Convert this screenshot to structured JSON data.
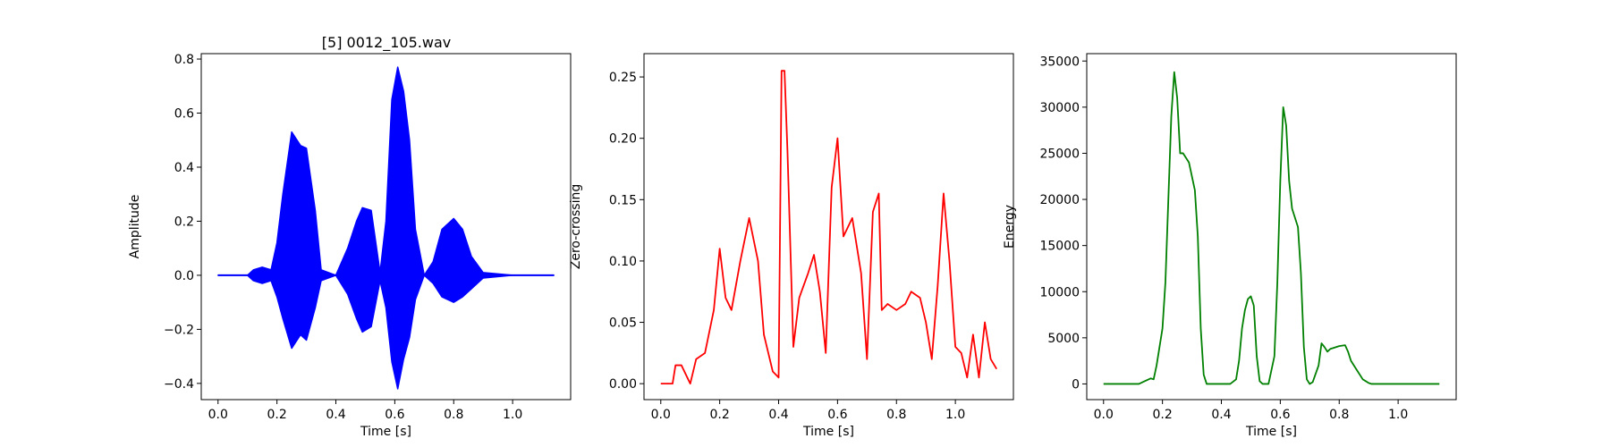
{
  "chart_data": [
    {
      "type": "line",
      "title": "[5] 0012_105.wav",
      "xlabel": "Time [s]",
      "ylabel": "Amplitude",
      "xlim": [
        -0.057,
        1.197
      ],
      "ylim": [
        -0.46,
        0.82
      ],
      "xticks": [
        0.0,
        0.2,
        0.4,
        0.6,
        0.8,
        1.0
      ],
      "xtick_labels": [
        "0.0",
        "0.2",
        "0.4",
        "0.6",
        "0.8",
        "1.0"
      ],
      "yticks": [
        -0.4,
        -0.2,
        0.0,
        0.2,
        0.4,
        0.6,
        0.8
      ],
      "ytick_labels": [
        "−0.4",
        "−0.2",
        "0.0",
        "0.2",
        "0.4",
        "0.6",
        "0.8"
      ],
      "grid": false,
      "style": "waveform",
      "series": [
        {
          "color": "#0000ff",
          "x": [
            0.0,
            0.1,
            0.12,
            0.15,
            0.18,
            0.2,
            0.22,
            0.25,
            0.28,
            0.3,
            0.33,
            0.35,
            0.4,
            0.44,
            0.47,
            0.49,
            0.52,
            0.55,
            0.57,
            0.59,
            0.61,
            0.63,
            0.65,
            0.67,
            0.7,
            0.73,
            0.76,
            0.8,
            0.83,
            0.86,
            0.9,
            1.0,
            1.14
          ],
          "upper": [
            0.0,
            0.0,
            0.02,
            0.03,
            0.02,
            0.12,
            0.3,
            0.53,
            0.48,
            0.47,
            0.24,
            0.02,
            0.0,
            0.1,
            0.2,
            0.25,
            0.24,
            0.01,
            0.2,
            0.65,
            0.77,
            0.68,
            0.5,
            0.17,
            0.0,
            0.05,
            0.17,
            0.21,
            0.17,
            0.07,
            0.01,
            0.0,
            0.0
          ],
          "lower": [
            0.0,
            0.0,
            -0.02,
            -0.03,
            -0.02,
            -0.08,
            -0.16,
            -0.27,
            -0.22,
            -0.24,
            -0.12,
            -0.02,
            0.0,
            -0.07,
            -0.16,
            -0.21,
            -0.19,
            -0.02,
            -0.12,
            -0.32,
            -0.42,
            -0.31,
            -0.23,
            -0.09,
            0.0,
            -0.03,
            -0.08,
            -0.1,
            -0.08,
            -0.05,
            -0.01,
            0.0,
            0.0
          ]
        }
      ]
    },
    {
      "type": "line",
      "title": "",
      "xlabel": "Time [s]",
      "ylabel": "Zero-crossing",
      "xlim": [
        -0.057,
        1.197
      ],
      "ylim": [
        -0.013,
        0.269
      ],
      "xticks": [
        0.0,
        0.2,
        0.4,
        0.6,
        0.8,
        1.0
      ],
      "xtick_labels": [
        "0.0",
        "0.2",
        "0.4",
        "0.6",
        "0.8",
        "1.0"
      ],
      "yticks": [
        0.0,
        0.05,
        0.1,
        0.15,
        0.2,
        0.25
      ],
      "ytick_labels": [
        "0.00",
        "0.05",
        "0.10",
        "0.15",
        "0.20",
        "0.25"
      ],
      "grid": false,
      "series": [
        {
          "color": "#ff0000",
          "x": [
            0.0,
            0.04,
            0.05,
            0.07,
            0.09,
            0.1,
            0.12,
            0.15,
            0.18,
            0.2,
            0.22,
            0.24,
            0.27,
            0.3,
            0.33,
            0.35,
            0.38,
            0.4,
            0.41,
            0.42,
            0.43,
            0.45,
            0.47,
            0.5,
            0.52,
            0.54,
            0.56,
            0.58,
            0.6,
            0.62,
            0.65,
            0.68,
            0.7,
            0.72,
            0.74,
            0.75,
            0.77,
            0.8,
            0.83,
            0.85,
            0.88,
            0.9,
            0.92,
            0.94,
            0.96,
            0.98,
            1.0,
            1.02,
            1.04,
            1.06,
            1.08,
            1.1,
            1.12,
            1.14
          ],
          "y": [
            0.0,
            0.0,
            0.015,
            0.015,
            0.005,
            0.0,
            0.02,
            0.025,
            0.06,
            0.11,
            0.07,
            0.06,
            0.1,
            0.135,
            0.1,
            0.04,
            0.01,
            0.005,
            0.255,
            0.255,
            0.19,
            0.03,
            0.07,
            0.09,
            0.105,
            0.075,
            0.025,
            0.16,
            0.2,
            0.12,
            0.135,
            0.09,
            0.02,
            0.14,
            0.155,
            0.06,
            0.065,
            0.06,
            0.065,
            0.075,
            0.07,
            0.05,
            0.02,
            0.08,
            0.155,
            0.1,
            0.03,
            0.025,
            0.005,
            0.04,
            0.005,
            0.05,
            0.02,
            0.012
          ]
        }
      ]
    },
    {
      "type": "line",
      "title": "",
      "xlabel": "Time [s]",
      "ylabel": "Energy",
      "xlim": [
        -0.057,
        1.197
      ],
      "ylim": [
        -1700,
        35800
      ],
      "xticks": [
        0.0,
        0.2,
        0.4,
        0.6,
        0.8,
        1.0
      ],
      "xtick_labels": [
        "0.0",
        "0.2",
        "0.4",
        "0.6",
        "0.8",
        "1.0"
      ],
      "yticks": [
        0,
        5000,
        10000,
        15000,
        20000,
        25000,
        30000,
        35000
      ],
      "ytick_labels": [
        "0",
        "5000",
        "10000",
        "15000",
        "20000",
        "25000",
        "30000",
        "35000"
      ],
      "grid": false,
      "series": [
        {
          "color": "#008000",
          "x": [
            0.0,
            0.12,
            0.14,
            0.16,
            0.17,
            0.18,
            0.2,
            0.21,
            0.22,
            0.23,
            0.24,
            0.25,
            0.26,
            0.27,
            0.29,
            0.31,
            0.32,
            0.33,
            0.34,
            0.35,
            0.37,
            0.43,
            0.45,
            0.46,
            0.47,
            0.48,
            0.49,
            0.5,
            0.51,
            0.52,
            0.53,
            0.54,
            0.56,
            0.58,
            0.59,
            0.6,
            0.61,
            0.62,
            0.63,
            0.64,
            0.66,
            0.67,
            0.68,
            0.69,
            0.7,
            0.71,
            0.73,
            0.74,
            0.75,
            0.76,
            0.77,
            0.78,
            0.8,
            0.82,
            0.83,
            0.84,
            0.86,
            0.88,
            0.9,
            0.91,
            1.14
          ],
          "y": [
            0,
            0,
            300,
            600,
            500,
            2000,
            6000,
            11000,
            20000,
            29000,
            33800,
            31000,
            25000,
            25000,
            24000,
            21000,
            16000,
            6000,
            1000,
            0,
            0,
            0,
            500,
            2500,
            6000,
            8000,
            9200,
            9500,
            8500,
            3000,
            300,
            0,
            0,
            3000,
            11000,
            22000,
            30000,
            28000,
            22000,
            19000,
            17000,
            12000,
            4000,
            500,
            0,
            200,
            2000,
            4400,
            4000,
            3500,
            3800,
            3900,
            4100,
            4200,
            3500,
            2500,
            1500,
            500,
            100,
            0,
            0
          ]
        }
      ]
    }
  ]
}
